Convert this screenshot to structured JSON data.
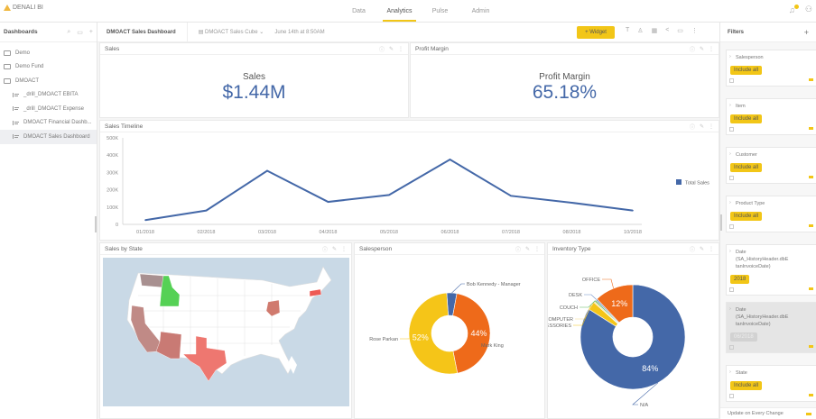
{
  "app": {
    "logo_text": "DENALI BI"
  },
  "nav": {
    "tabs": [
      {
        "label": "Data",
        "active": false
      },
      {
        "label": "Analytics",
        "active": true
      },
      {
        "label": "Pulse",
        "active": false
      },
      {
        "label": "Admin",
        "active": false
      }
    ]
  },
  "sidebar": {
    "title": "Dashboards",
    "items": [
      {
        "label": "Demo",
        "type": "folder"
      },
      {
        "label": "Demo Fund",
        "type": "folder"
      },
      {
        "label": "DMOACT",
        "type": "folder-open"
      },
      {
        "label": "_drill_DMOACT EBITA",
        "type": "dashboard"
      },
      {
        "label": "_drill_DMOACT Expense",
        "type": "dashboard"
      },
      {
        "label": "DMOACT Financial Dashb...",
        "type": "dashboard"
      },
      {
        "label": "DMOACT Sales Dashboard",
        "type": "dashboard",
        "selected": true
      }
    ]
  },
  "dashboard": {
    "title": "DMOACT Sales Dashboard",
    "cube": "DMOACT Sales Cube",
    "updated": "June 14th at 8:50AM",
    "widget_button": "+ Widget",
    "tool_icons": [
      "text-icon",
      "lock-icon",
      "grid-icon",
      "share-icon",
      "comment-icon",
      "more-icon"
    ]
  },
  "panels": {
    "sales": {
      "title": "Sales",
      "kpi_label": "Sales",
      "kpi_value": "$1.44M"
    },
    "profit": {
      "title": "Profit Margin",
      "kpi_label": "Profit Margin",
      "kpi_value": "65.18%"
    },
    "timeline": {
      "title": "Sales Timeline"
    },
    "state": {
      "title": "Sales by State"
    },
    "salesperson": {
      "title": "Salesperson"
    },
    "inventory": {
      "title": "Inventory Type"
    }
  },
  "chart_data": [
    {
      "type": "line",
      "title": "Sales Timeline",
      "categories": [
        "01/2018",
        "02/2018",
        "03/2018",
        "04/2018",
        "05/2018",
        "06/2018",
        "07/2018",
        "08/2018",
        "10/2018"
      ],
      "series": [
        {
          "name": "Total Sales",
          "color": "#4468a8",
          "values": [
            25000,
            80000,
            310000,
            130000,
            170000,
            375000,
            165000,
            125000,
            80000
          ]
        }
      ],
      "yticks": [
        "0",
        "100K",
        "200K",
        "300K",
        "400K",
        "500K"
      ],
      "ylim": [
        0,
        500000
      ],
      "legend": "right"
    },
    {
      "type": "pie",
      "title": "Salesperson",
      "donut": true,
      "slices": [
        {
          "label": "Bob Kennedy - Manager",
          "value": 4,
          "color": "#4468a8",
          "shown_pct": ""
        },
        {
          "label": "Mark King",
          "value": 44,
          "color": "#ee6a1a",
          "shown_pct": "44%"
        },
        {
          "label": "Rose Parkan",
          "value": 52,
          "color": "#f5c518",
          "shown_pct": "52%"
        }
      ]
    },
    {
      "type": "pie",
      "title": "Inventory Type",
      "donut": true,
      "slices": [
        {
          "label": "N/A",
          "value": 84,
          "color": "#4468a8",
          "shown_pct": "84%"
        },
        {
          "label": "ACCESSORIES",
          "value": 2.6,
          "color": "#f5c518",
          "shown_pct": ""
        },
        {
          "label": "COMPUTER",
          "value": 0.4,
          "color": "#f7d98a",
          "shown_pct": ""
        },
        {
          "label": "COUCH",
          "value": 0.5,
          "color": "#5cb85c",
          "shown_pct": ""
        },
        {
          "label": "DESK",
          "value": 0.5,
          "color": "#6f8fc8",
          "shown_pct": ""
        },
        {
          "label": "OFFICE",
          "value": 12,
          "color": "#ee6a1a",
          "shown_pct": "12%"
        }
      ]
    },
    {
      "type": "map",
      "title": "Sales by State",
      "highlighted_states": [
        {
          "state": "WA",
          "color": "#a89090"
        },
        {
          "state": "ID",
          "color": "#55d155"
        },
        {
          "state": "CA",
          "color": "#c08a86"
        },
        {
          "state": "AZ",
          "color": "#c97a74"
        },
        {
          "state": "TX",
          "color": "#ee7770"
        },
        {
          "state": "OH",
          "color": "#d07a6e"
        },
        {
          "state": "MA",
          "color": "#ee5a55"
        }
      ]
    }
  ],
  "filters": {
    "title": "Filters",
    "cards": [
      {
        "name": "Salesperson",
        "value": "Include all",
        "disabled": false
      },
      {
        "name": "Item",
        "value": "Include all",
        "disabled": false
      },
      {
        "name": "Customer",
        "value": "Include all",
        "disabled": false
      },
      {
        "name": "Product Type",
        "value": "Include all",
        "disabled": false
      },
      {
        "name": "Date\n(SA_HistoryHeader.dbE\ntanInvoiceDate)",
        "value": "2018",
        "disabled": false
      },
      {
        "name": "Date\n(SA_HistoryHeader.dbE\ntanInvoiceDate)",
        "value": "06/2018",
        "disabled": true
      },
      {
        "name": "State",
        "value": "Include all",
        "disabled": false
      }
    ],
    "footer": "Update on Every Change"
  }
}
